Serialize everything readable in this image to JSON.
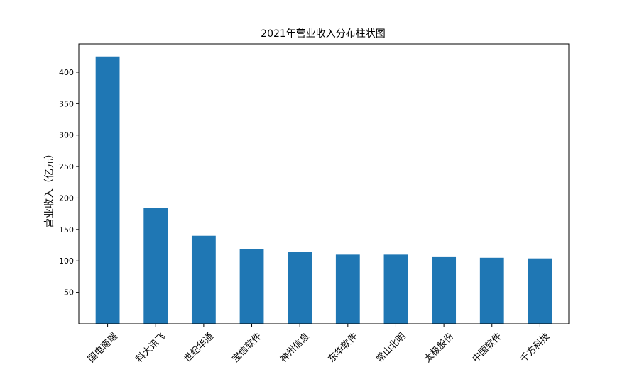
{
  "chart_data": {
    "type": "bar",
    "title": "2021年营业收入分布柱状图",
    "xlabel": "",
    "ylabel": "营业收入（亿元）",
    "categories": [
      "国电南瑞",
      "科大讯飞",
      "世纪华通",
      "宝信软件",
      "神州信息",
      "东华软件",
      "常山北明",
      "太极股份",
      "中国软件",
      "千方科技"
    ],
    "values": [
      425,
      184,
      140,
      119,
      114,
      110,
      110,
      106,
      105,
      104
    ],
    "ylim": [
      0,
      445
    ],
    "yticks": [
      50,
      100,
      150,
      200,
      250,
      300,
      350,
      400
    ],
    "grid": false,
    "bar_color": "#1f77b4"
  }
}
